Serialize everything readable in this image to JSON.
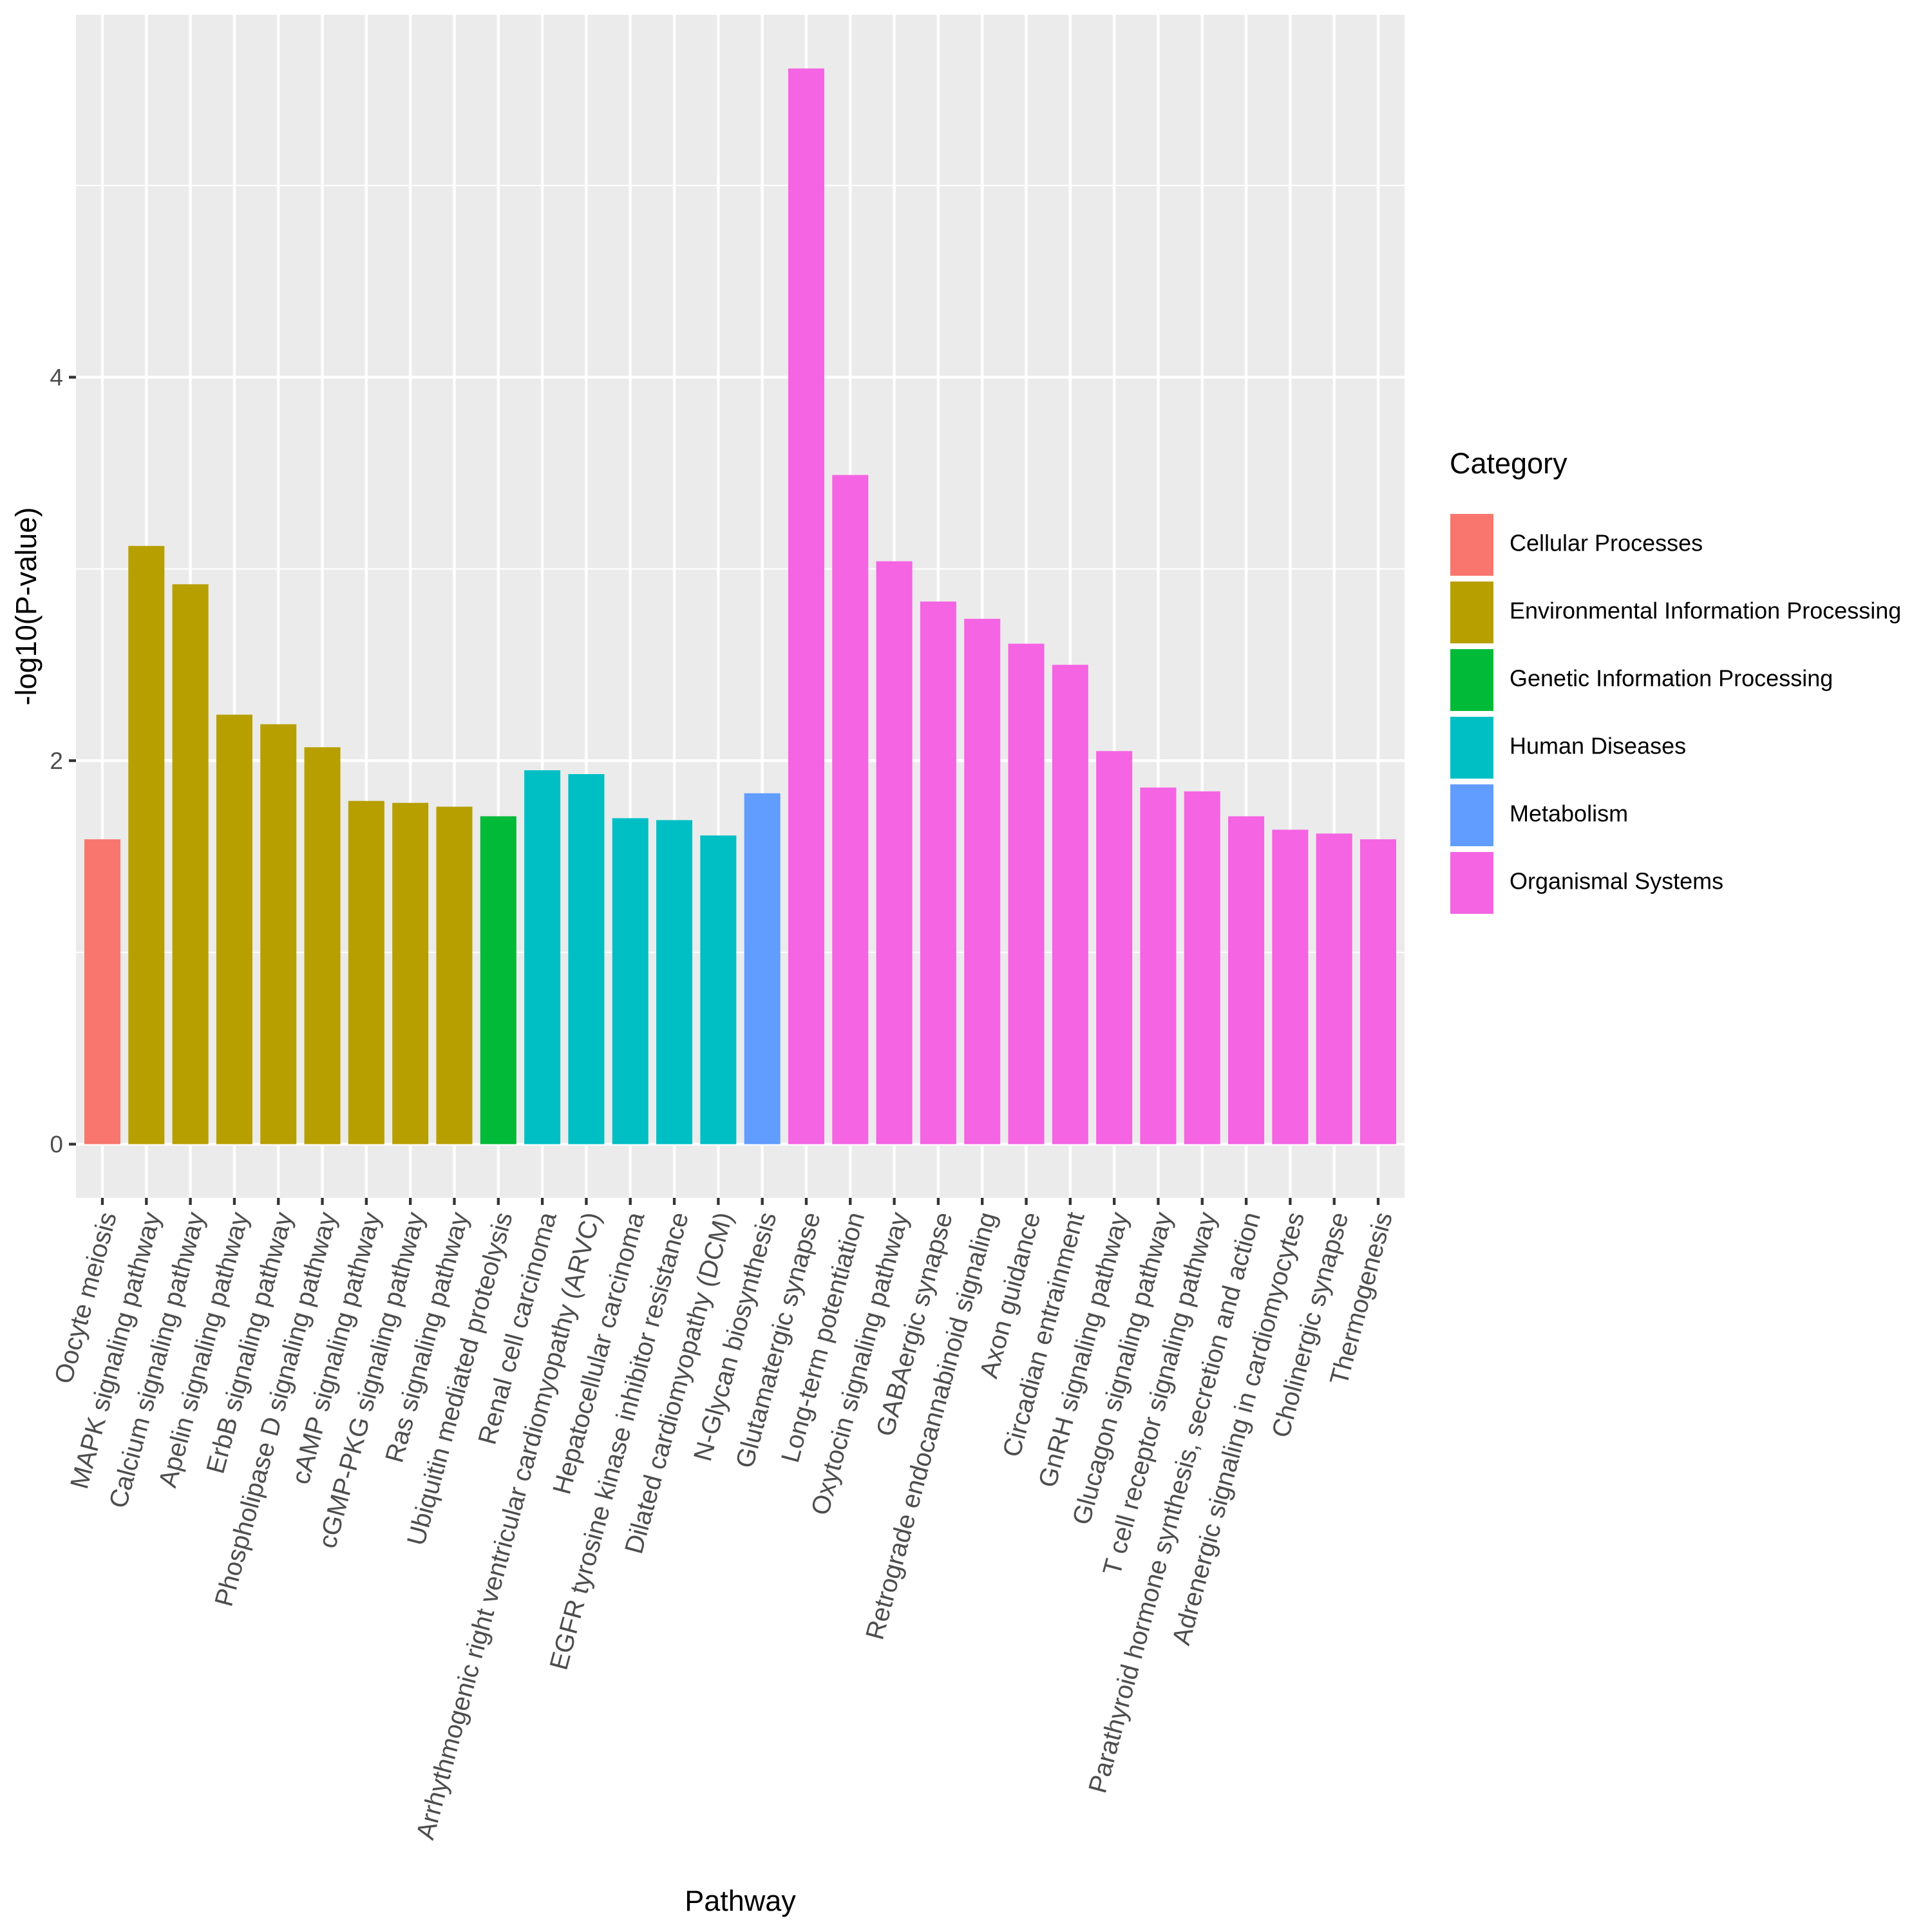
{
  "chart_data": {
    "type": "bar",
    "title": "",
    "xlabel": "Pathway",
    "ylabel": "-log10(P-value)",
    "ylim": [
      -0.28,
      5.89
    ],
    "y_major_ticks": [
      0,
      2,
      4
    ],
    "y_tick_labels": [
      "0",
      "2",
      "4"
    ],
    "y_minor_gridlines": [
      1,
      3,
      5
    ],
    "grid": true,
    "x_label_rotation_deg": 75,
    "legend": {
      "title": "Category",
      "placement": "right",
      "entries": [
        {
          "name": "Cellular Processes",
          "color": "#F8766D"
        },
        {
          "name": "Environmental Information Processing",
          "color": "#B79F00"
        },
        {
          "name": "Genetic Information Processing",
          "color": "#00BA38"
        },
        {
          "name": "Human Diseases",
          "color": "#00BFC4"
        },
        {
          "name": "Metabolism",
          "color": "#619CFF"
        },
        {
          "name": "Organismal Systems",
          "color": "#F564E3"
        }
      ]
    },
    "categories": [
      "Oocyte meiosis",
      "MAPK signaling pathway",
      "Calcium signaling pathway",
      "Apelin signaling pathway",
      "ErbB signaling pathway",
      "Phospholipase D signaling pathway",
      "cAMP signaling pathway",
      "cGMP-PKG signaling pathway",
      "Ras signaling pathway",
      "Ubiquitin mediated proteolysis",
      "Renal cell carcinoma",
      "Arrhythmogenic right ventricular cardiomyopathy (ARVC)",
      "Hepatocellular carcinoma",
      "EGFR tyrosine kinase inhibitor resistance",
      "Dilated cardiomyopathy (DCM)",
      "N-Glycan biosynthesis",
      "Glutamatergic synapse",
      "Long-term potentiation",
      "Oxytocin signaling pathway",
      "GABAergic synapse",
      "Retrograde endocannabinoid signaling",
      "Axon guidance",
      "Circadian entrainment",
      "GnRH signaling pathway",
      "Glucagon signaling pathway",
      "T cell receptor signaling pathway",
      "Parathyroid hormone synthesis, secretion and action",
      "Adrenergic signaling in cardiomyocytes",
      "Cholinergic synapse",
      "Thermogenesis"
    ],
    "values": [
      1.59,
      3.12,
      2.92,
      2.24,
      2.19,
      2.07,
      1.79,
      1.78,
      1.76,
      1.71,
      1.95,
      1.93,
      1.7,
      1.69,
      1.61,
      1.83,
      5.61,
      3.49,
      3.04,
      2.83,
      2.74,
      2.61,
      2.5,
      2.05,
      1.86,
      1.84,
      1.71,
      1.64,
      1.62,
      1.59
    ],
    "category_group": [
      "Cellular Processes",
      "Environmental Information Processing",
      "Environmental Information Processing",
      "Environmental Information Processing",
      "Environmental Information Processing",
      "Environmental Information Processing",
      "Environmental Information Processing",
      "Environmental Information Processing",
      "Environmental Information Processing",
      "Genetic Information Processing",
      "Human Diseases",
      "Human Diseases",
      "Human Diseases",
      "Human Diseases",
      "Human Diseases",
      "Metabolism",
      "Organismal Systems",
      "Organismal Systems",
      "Organismal Systems",
      "Organismal Systems",
      "Organismal Systems",
      "Organismal Systems",
      "Organismal Systems",
      "Organismal Systems",
      "Organismal Systems",
      "Organismal Systems",
      "Organismal Systems",
      "Organismal Systems",
      "Organismal Systems",
      "Organismal Systems"
    ]
  }
}
